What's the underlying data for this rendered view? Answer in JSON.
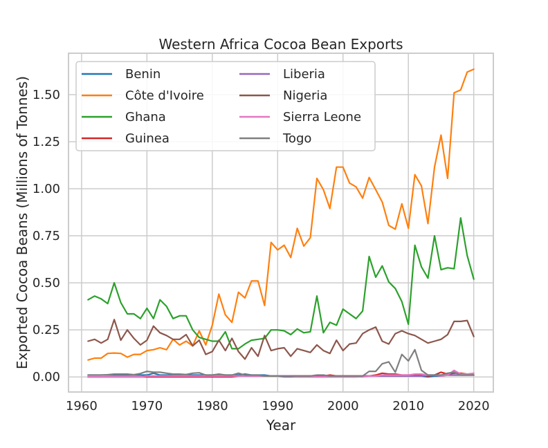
{
  "chart_data": {
    "type": "line",
    "title": "Western Africa Cocoa Bean Exports",
    "xlabel": "Year",
    "ylabel": "Exported Cocoa Beans (Millions of Tonnes)",
    "xlim": [
      1958,
      2023
    ],
    "ylim": [
      -0.08,
      1.72
    ],
    "xticks": [
      1960,
      1970,
      1980,
      1990,
      2000,
      2010,
      2020
    ],
    "xtick_labels": [
      "1960",
      "1970",
      "1980",
      "1990",
      "2000",
      "2010",
      "2020"
    ],
    "yticks": [
      0.0,
      0.25,
      0.5,
      0.75,
      1.0,
      1.25,
      1.5
    ],
    "ytick_labels": [
      "0.00",
      "0.25",
      "0.50",
      "0.75",
      "1.00",
      "1.25",
      "1.50"
    ],
    "grid": true,
    "legend_position": "top-left",
    "legend_columns": 2,
    "x": [
      1961,
      1962,
      1963,
      1964,
      1965,
      1966,
      1967,
      1968,
      1969,
      1970,
      1971,
      1972,
      1973,
      1974,
      1975,
      1976,
      1977,
      1978,
      1979,
      1980,
      1981,
      1982,
      1983,
      1984,
      1985,
      1986,
      1987,
      1988,
      1989,
      1990,
      1991,
      1992,
      1993,
      1994,
      1995,
      1996,
      1997,
      1998,
      1999,
      2000,
      2001,
      2002,
      2003,
      2004,
      2005,
      2006,
      2007,
      2008,
      2009,
      2010,
      2011,
      2012,
      2013,
      2014,
      2015,
      2016,
      2017,
      2018,
      2019,
      2020
    ],
    "series": [
      {
        "name": "Benin",
        "color": "#1f77b4",
        "values": [
          0.01,
          0.01,
          0.01,
          0.01,
          0.01,
          0.01,
          0.01,
          0.01,
          0.01,
          0.01,
          0.02,
          0.01,
          0.01,
          0.01,
          0.01,
          0.01,
          0.01,
          0.01,
          0.01,
          0.01,
          0.01,
          0.01,
          0.01,
          0.01,
          0.015,
          0.01,
          0.01,
          0.01,
          0.005,
          0.005,
          0.005,
          0.005,
          0.005,
          0.005,
          0.005,
          0.005,
          0.005,
          0.005,
          0.005,
          0.005,
          0.005,
          0.005,
          0.005,
          0.005,
          0.005,
          0.005,
          0.005,
          0.005,
          0.005,
          0.005,
          0.005,
          0.005,
          0.0,
          0.005,
          0.005,
          0.01,
          0.01,
          0.01,
          0.01,
          0.01
        ]
      },
      {
        "name": "Côte d'Ivoire",
        "color": "#ff7f0e",
        "values": [
          0.09,
          0.1,
          0.1,
          0.125,
          0.127,
          0.125,
          0.105,
          0.12,
          0.12,
          0.14,
          0.145,
          0.155,
          0.145,
          0.2,
          0.17,
          0.19,
          0.165,
          0.245,
          0.17,
          0.275,
          0.44,
          0.33,
          0.29,
          0.45,
          0.42,
          0.51,
          0.51,
          0.38,
          0.715,
          0.675,
          0.7,
          0.635,
          0.79,
          0.695,
          0.74,
          1.055,
          0.995,
          0.895,
          1.115,
          1.115,
          1.03,
          1.01,
          0.95,
          1.06,
          0.995,
          0.93,
          0.805,
          0.785,
          0.92,
          0.79,
          1.075,
          1.015,
          0.815,
          1.115,
          1.285,
          1.055,
          1.51,
          1.525,
          1.62,
          1.635
        ]
      },
      {
        "name": "Ghana",
        "color": "#2ca02c",
        "values": [
          0.41,
          0.43,
          0.415,
          0.39,
          0.5,
          0.395,
          0.335,
          0.335,
          0.31,
          0.365,
          0.31,
          0.41,
          0.375,
          0.31,
          0.325,
          0.325,
          0.25,
          0.21,
          0.2,
          0.19,
          0.19,
          0.24,
          0.15,
          0.15,
          0.175,
          0.195,
          0.2,
          0.205,
          0.25,
          0.25,
          0.245,
          0.225,
          0.255,
          0.235,
          0.24,
          0.43,
          0.235,
          0.29,
          0.275,
          0.36,
          0.335,
          0.31,
          0.35,
          0.64,
          0.53,
          0.59,
          0.505,
          0.47,
          0.4,
          0.28,
          0.7,
          0.585,
          0.525,
          0.75,
          0.57,
          0.58,
          0.575,
          0.845,
          0.645,
          0.52
        ]
      },
      {
        "name": "Guinea",
        "color": "#d62728",
        "values": [
          0.0,
          0.0,
          0.0,
          0.0,
          0.0,
          0.0,
          0.0,
          0.0,
          0.0,
          0.0,
          0.0,
          0.0,
          0.0,
          0.0,
          0.0,
          0.0,
          0.0,
          0.0,
          0.0,
          0.0,
          0.0,
          0.0,
          0.0,
          0.005,
          0.005,
          0.005,
          0.005,
          0.005,
          0.005,
          0.005,
          0.005,
          0.005,
          0.005,
          0.005,
          0.005,
          0.005,
          0.005,
          0.01,
          0.005,
          0.005,
          0.005,
          0.005,
          0.005,
          0.005,
          0.01,
          0.02,
          0.015,
          0.015,
          0.01,
          0.01,
          0.01,
          0.01,
          0.005,
          0.01,
          0.025,
          0.015,
          0.02,
          0.02,
          0.015,
          0.01
        ]
      },
      {
        "name": "Liberia",
        "color": "#9467bd",
        "values": [
          0.0,
          0.0,
          0.0,
          0.0,
          0.0,
          0.0,
          0.0,
          0.0,
          0.0,
          0.005,
          0.005,
          0.005,
          0.005,
          0.005,
          0.005,
          0.005,
          0.005,
          0.005,
          0.005,
          0.005,
          0.005,
          0.005,
          0.005,
          0.005,
          0.005,
          0.005,
          0.005,
          0.005,
          0.005,
          0.005,
          0.0,
          0.0,
          0.0,
          0.0,
          0.0,
          0.0,
          0.0,
          0.0,
          0.0,
          0.0,
          0.0,
          0.0,
          0.005,
          0.005,
          0.005,
          0.005,
          0.005,
          0.005,
          0.005,
          0.005,
          0.005,
          0.005,
          0.01,
          0.01,
          0.01,
          0.01,
          0.01,
          0.01,
          0.01,
          0.01
        ]
      },
      {
        "name": "Nigeria",
        "color": "#8c564b",
        "values": [
          0.19,
          0.2,
          0.18,
          0.2,
          0.305,
          0.195,
          0.25,
          0.205,
          0.17,
          0.195,
          0.27,
          0.235,
          0.22,
          0.2,
          0.2,
          0.225,
          0.165,
          0.195,
          0.12,
          0.135,
          0.195,
          0.14,
          0.205,
          0.135,
          0.095,
          0.155,
          0.11,
          0.22,
          0.14,
          0.15,
          0.155,
          0.11,
          0.15,
          0.14,
          0.13,
          0.17,
          0.14,
          0.125,
          0.195,
          0.14,
          0.175,
          0.18,
          0.23,
          0.25,
          0.265,
          0.19,
          0.175,
          0.23,
          0.245,
          0.23,
          0.22,
          0.2,
          0.18,
          0.19,
          0.2,
          0.225,
          0.295,
          0.295,
          0.3,
          0.215
        ]
      },
      {
        "name": "Sierra Leone",
        "color": "#e377c2",
        "values": [
          0.0,
          0.0,
          0.0,
          0.0,
          0.0,
          0.0,
          0.0,
          0.0,
          0.0,
          0.005,
          0.005,
          0.005,
          0.005,
          0.005,
          0.005,
          0.005,
          0.005,
          0.005,
          0.005,
          0.005,
          0.005,
          0.005,
          0.005,
          0.005,
          0.005,
          0.005,
          0.005,
          0.005,
          0.005,
          0.005,
          0.005,
          0.005,
          0.0,
          0.0,
          0.0,
          0.0,
          0.0,
          0.0,
          0.0,
          0.0,
          0.0,
          0.0,
          0.0,
          0.005,
          0.005,
          0.01,
          0.01,
          0.01,
          0.01,
          0.01,
          0.015,
          0.015,
          0.01,
          0.01,
          0.005,
          0.01,
          0.035,
          0.015,
          0.015,
          0.02
        ]
      },
      {
        "name": "Togo",
        "color": "#7f7f7f",
        "values": [
          0.01,
          0.01,
          0.01,
          0.012,
          0.015,
          0.015,
          0.015,
          0.012,
          0.018,
          0.03,
          0.025,
          0.025,
          0.02,
          0.015,
          0.015,
          0.013,
          0.02,
          0.022,
          0.01,
          0.01,
          0.015,
          0.01,
          0.01,
          0.02,
          0.01,
          0.01,
          0.01,
          0.005,
          0.005,
          0.005,
          0.005,
          0.005,
          0.005,
          0.005,
          0.005,
          0.01,
          0.01,
          0.005,
          0.005,
          0.005,
          0.005,
          0.005,
          0.005,
          0.03,
          0.03,
          0.07,
          0.08,
          0.025,
          0.12,
          0.085,
          0.145,
          0.035,
          0.01,
          0.01,
          0.01,
          0.02,
          0.025,
          0.01,
          0.01,
          0.01
        ]
      }
    ]
  }
}
